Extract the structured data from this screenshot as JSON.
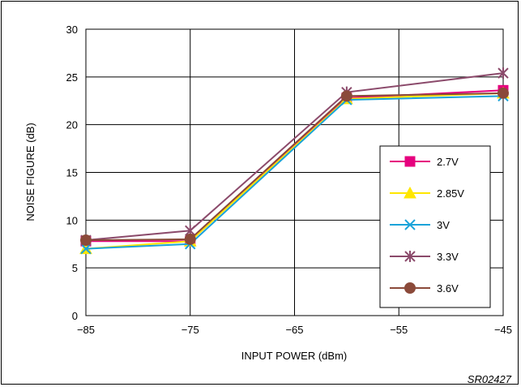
{
  "chart_data": {
    "type": "line",
    "title": "",
    "xlabel": "INPUT POWER (dBm)",
    "ylabel": "NOISE FIGURE (dB)",
    "xlim": [
      -85,
      -45
    ],
    "ylim": [
      0,
      30
    ],
    "x_ticks": [
      "−85",
      "−75",
      "−65",
      "−55",
      "−45"
    ],
    "y_ticks": [
      "0",
      "5",
      "10",
      "15",
      "20",
      "25",
      "30"
    ],
    "grid": true,
    "legend_position": "right",
    "x": [
      -85,
      -75,
      -60,
      -45
    ],
    "series": [
      {
        "name": "2.7V",
        "values": [
          7.8,
          7.8,
          22.8,
          23.6
        ],
        "color": "#e6007e",
        "marker": "square"
      },
      {
        "name": "2.85V",
        "values": [
          7.0,
          7.8,
          22.7,
          23.3
        ],
        "color": "#ffe600",
        "marker": "triangle"
      },
      {
        "name": "3V",
        "values": [
          7.0,
          7.5,
          22.6,
          23.0
        ],
        "color": "#1aa3d9",
        "marker": "x"
      },
      {
        "name": "3.3V",
        "values": [
          7.9,
          8.9,
          23.4,
          25.4
        ],
        "color": "#8b4a6b",
        "marker": "asterisk"
      },
      {
        "name": "3.6V",
        "values": [
          7.9,
          8.0,
          23.0,
          23.3
        ],
        "color": "#8b4a3a",
        "marker": "circle"
      }
    ]
  },
  "figure_code": "SR02427"
}
